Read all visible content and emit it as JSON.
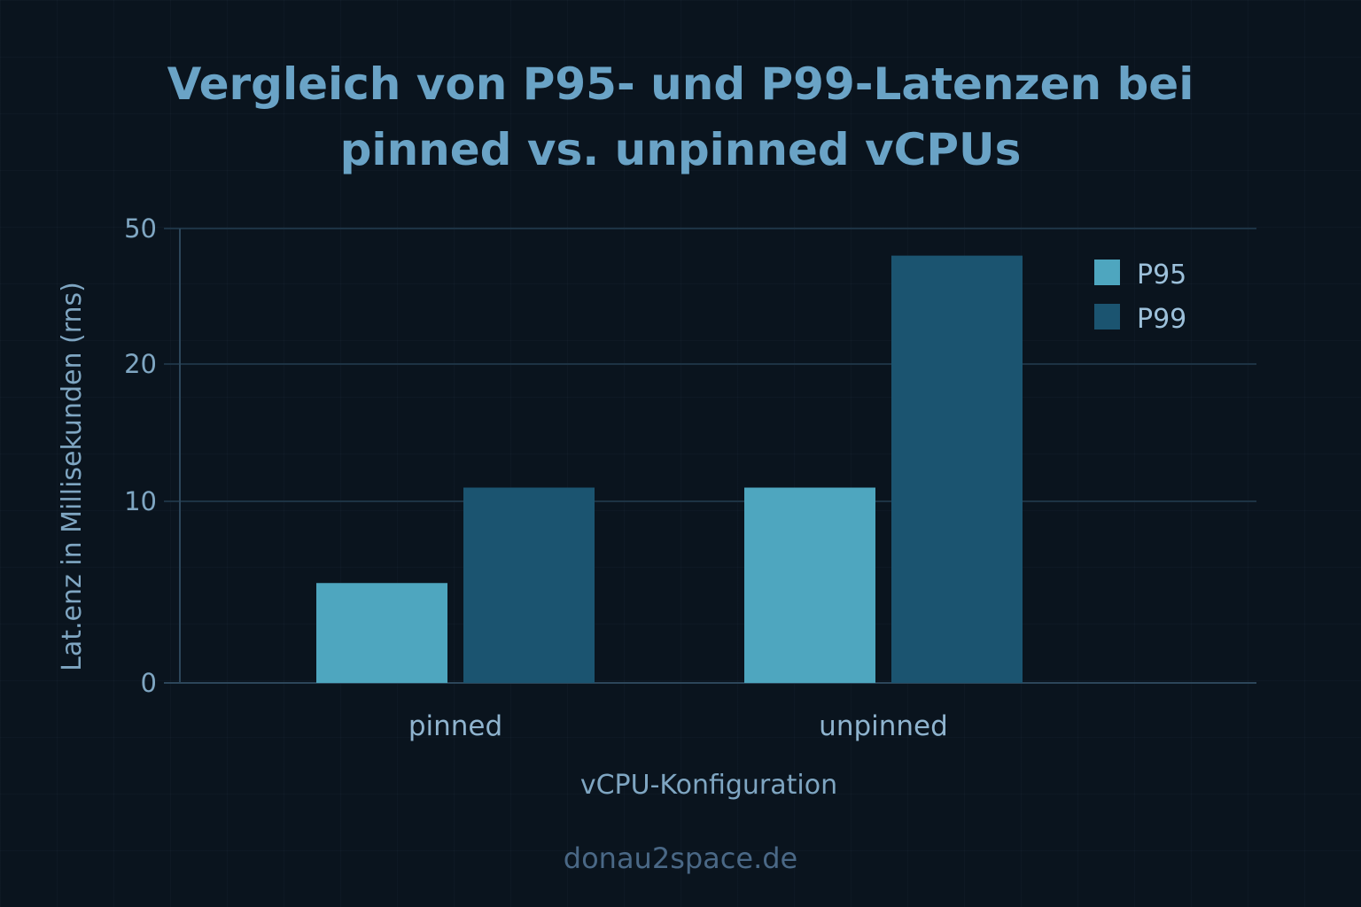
{
  "chart_data": {
    "type": "bar",
    "title": [
      "Vergleich von P95- und P99-Latenzen bei",
      "pinned vs. unpinned vCPUs"
    ],
    "xlabel": "vCPU-Konfiguration",
    "ylabel": "Lat.enz in Millisekunden (rns)",
    "categories": [
      "pinned",
      "unpinned"
    ],
    "yticks": [
      0,
      10,
      20,
      50
    ],
    "ylim": [
      0,
      50
    ],
    "scale_note": "non-linear y-axis: ticks 0, 10, 20, 50",
    "series": [
      {
        "name": "P95",
        "values": [
          5.5,
          11
        ],
        "color": "#4ea6bf"
      },
      {
        "name": "P99",
        "values": [
          11,
          44
        ],
        "color": "#1b5470"
      }
    ],
    "grid": true,
    "legend_position": "top-right"
  },
  "watermark": "donau2space.de",
  "colors": {
    "background": "#0a141e",
    "title": "#6aa3c6",
    "gridline": "#1d3344"
  }
}
